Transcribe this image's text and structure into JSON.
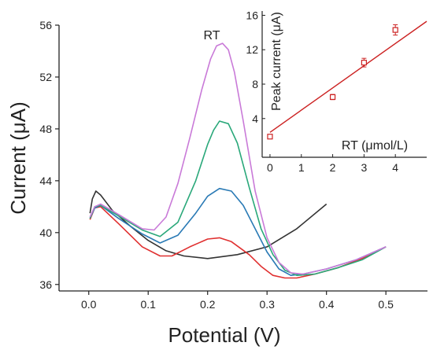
{
  "chart_data": [
    {
      "type": "line",
      "title": "",
      "annotation": "RT",
      "xlabel": "Potential (V)",
      "ylabel": "Current (μA)",
      "xlim": [
        -0.05,
        0.57
      ],
      "ylim": [
        35.5,
        56
      ],
      "xticks": [
        "0.0",
        "0.1",
        "0.2",
        "0.3",
        "0.4",
        "0.5"
      ],
      "yticks": [
        "36",
        "40",
        "44",
        "48",
        "52",
        "56"
      ],
      "grid": false,
      "legend": "none",
      "series": [
        {
          "color": "#333333",
          "x": [
            0.002,
            0.006,
            0.012,
            0.02,
            0.04,
            0.07,
            0.1,
            0.13,
            0.16,
            0.2,
            0.25,
            0.3,
            0.35,
            0.4
          ],
          "y": [
            41.5,
            42.6,
            43.2,
            42.9,
            41.7,
            40.5,
            39.4,
            38.6,
            38.2,
            38.0,
            38.3,
            38.9,
            40.3,
            42.2
          ]
        },
        {
          "color": "#e03030",
          "x": [
            0.002,
            0.01,
            0.02,
            0.05,
            0.09,
            0.12,
            0.14,
            0.17,
            0.2,
            0.22,
            0.24,
            0.27,
            0.29,
            0.31,
            0.33,
            0.35,
            0.38,
            0.42,
            0.46,
            0.5
          ],
          "y": [
            41.0,
            41.9,
            42.0,
            40.7,
            38.9,
            38.2,
            38.2,
            38.9,
            39.5,
            39.6,
            39.3,
            38.3,
            37.4,
            36.7,
            36.5,
            36.5,
            36.8,
            37.3,
            38.0,
            38.9
          ]
        },
        {
          "color": "#2a7ab5",
          "x": [
            0.002,
            0.01,
            0.02,
            0.05,
            0.09,
            0.12,
            0.15,
            0.18,
            0.2,
            0.22,
            0.24,
            0.26,
            0.28,
            0.3,
            0.32,
            0.34,
            0.36,
            0.4,
            0.45,
            0.5
          ],
          "y": [
            41.1,
            41.9,
            42.1,
            41.1,
            39.9,
            39.2,
            39.8,
            41.5,
            42.8,
            43.4,
            43.2,
            42.1,
            40.3,
            38.5,
            37.2,
            36.7,
            36.8,
            37.2,
            37.9,
            38.9
          ]
        },
        {
          "color": "#2aa87a",
          "x": [
            0.002,
            0.01,
            0.02,
            0.05,
            0.09,
            0.12,
            0.15,
            0.18,
            0.2,
            0.21,
            0.22,
            0.235,
            0.25,
            0.27,
            0.29,
            0.31,
            0.33,
            0.35,
            0.38,
            0.42,
            0.46,
            0.5
          ],
          "y": [
            41.1,
            42.0,
            42.1,
            41.3,
            40.2,
            39.7,
            40.8,
            44.0,
            46.8,
            47.9,
            48.6,
            48.4,
            46.9,
            43.5,
            40.3,
            38.3,
            37.1,
            36.7,
            36.8,
            37.3,
            37.9,
            38.9
          ]
        },
        {
          "color": "#c97ad8",
          "x": [
            0.002,
            0.01,
            0.02,
            0.05,
            0.09,
            0.11,
            0.13,
            0.15,
            0.17,
            0.19,
            0.205,
            0.215,
            0.225,
            0.235,
            0.245,
            0.26,
            0.28,
            0.3,
            0.32,
            0.34,
            0.36,
            0.4,
            0.45,
            0.5
          ],
          "y": [
            41.2,
            42.0,
            42.2,
            41.4,
            40.3,
            40.2,
            41.2,
            43.8,
            47.3,
            51.0,
            53.4,
            54.4,
            54.6,
            54.1,
            52.4,
            48.6,
            43.2,
            39.6,
            37.7,
            36.9,
            36.8,
            37.2,
            37.9,
            38.9
          ]
        }
      ]
    },
    {
      "type": "scatter",
      "title": "",
      "xlabel": "RT (μmol/L)",
      "ylabel": "Peak current (μA)",
      "xlim": [
        -0.25,
        5.0
      ],
      "ylim": [
        -0.5,
        16.5
      ],
      "xticks": [
        "0",
        "1",
        "2",
        "3",
        "4"
      ],
      "yticks": [
        "4",
        "8",
        "12",
        "16"
      ],
      "grid": false,
      "legend": "none",
      "points": {
        "color": "#cc2222",
        "x": [
          0,
          2,
          3,
          4
        ],
        "y": [
          1.9,
          6.5,
          10.5,
          14.3
        ],
        "yerr": [
          0.25,
          0.3,
          0.5,
          0.6
        ]
      },
      "fit": {
        "color": "#cc2222",
        "x": [
          0,
          5
        ],
        "y": [
          2.4,
          15.3
        ]
      }
    }
  ]
}
